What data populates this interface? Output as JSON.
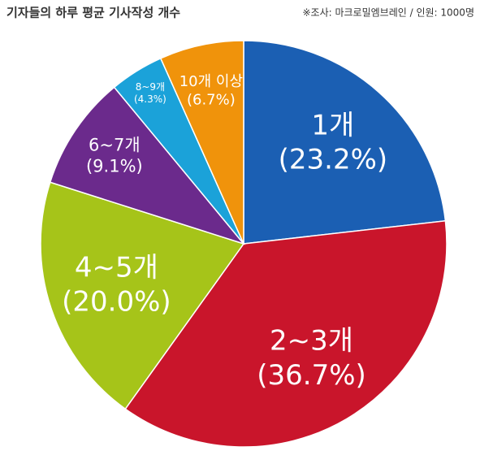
{
  "chart_data": {
    "type": "pie",
    "title": "기자들의 하루 평균 기사작성 개수",
    "subtitle": "※조사: 마크로밀엠브레인 / 인원: 1000명",
    "categories": [
      "1개",
      "2~3개",
      "4~5개",
      "6~7개",
      "8~9개",
      "10개 이상"
    ],
    "values": [
      23.2,
      36.7,
      20.0,
      9.1,
      4.3,
      6.7
    ],
    "value_labels": [
      "(23.2%)",
      "(36.7%)",
      "(20.0%)",
      "(9.1%)",
      "(4.3%)",
      "(6.7%)"
    ],
    "colors": [
      "#1b5fb3",
      "#c9152b",
      "#a6c419",
      "#6b2a8c",
      "#1ba2d9",
      "#f0930b"
    ]
  }
}
